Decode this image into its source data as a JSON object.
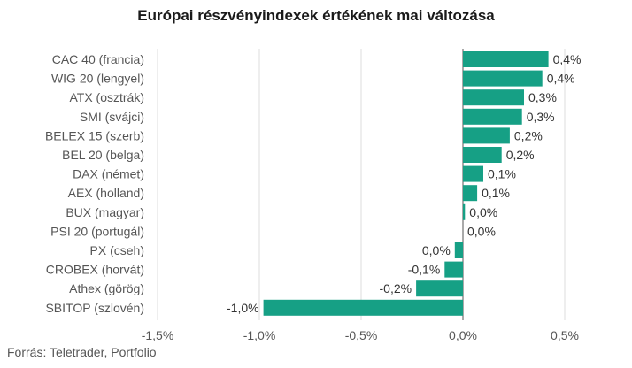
{
  "chart_data": {
    "type": "bar",
    "orientation": "horizontal",
    "title": "Európai részvényindexek értékének mai változása",
    "categories": [
      "CAC 40 (francia)",
      "WIG 20 (lengyel)",
      "ATX (osztrák)",
      "SMI (svájci)",
      "BELEX 15 (szerb)",
      "BEL 20 (belga)",
      "DAX (német)",
      "AEX (holland)",
      "BUX (magyar)",
      "PSI 20 (portugál)",
      "PX (cseh)",
      "CROBEX (horvát)",
      "Athex (görög)",
      "SBITOP (szlovén)"
    ],
    "values": [
      0.42,
      0.39,
      0.3,
      0.29,
      0.23,
      0.19,
      0.1,
      0.07,
      0.01,
      0.0,
      -0.04,
      -0.09,
      -0.23,
      -0.98
    ],
    "value_labels": [
      "0,4%",
      "0,4%",
      "0,3%",
      "0,3%",
      "0,2%",
      "0,2%",
      "0,1%",
      "0,1%",
      "0,0%",
      "0,0%",
      "0,0%",
      "-0,1%",
      "-0,2%",
      "-1,0%"
    ],
    "xlim": [
      -1.5,
      0.5
    ],
    "xticks": [
      -1.5,
      -1.0,
      -0.5,
      0.0,
      0.5
    ],
    "xtick_labels": [
      "-1,5%",
      "-1,0%",
      "-0,5%",
      "0,0%",
      "0,5%"
    ],
    "grid": true,
    "bar_color": "#16a085",
    "xlabel": "",
    "ylabel": ""
  },
  "source": "Forrás: Teletrader, Portfolio"
}
